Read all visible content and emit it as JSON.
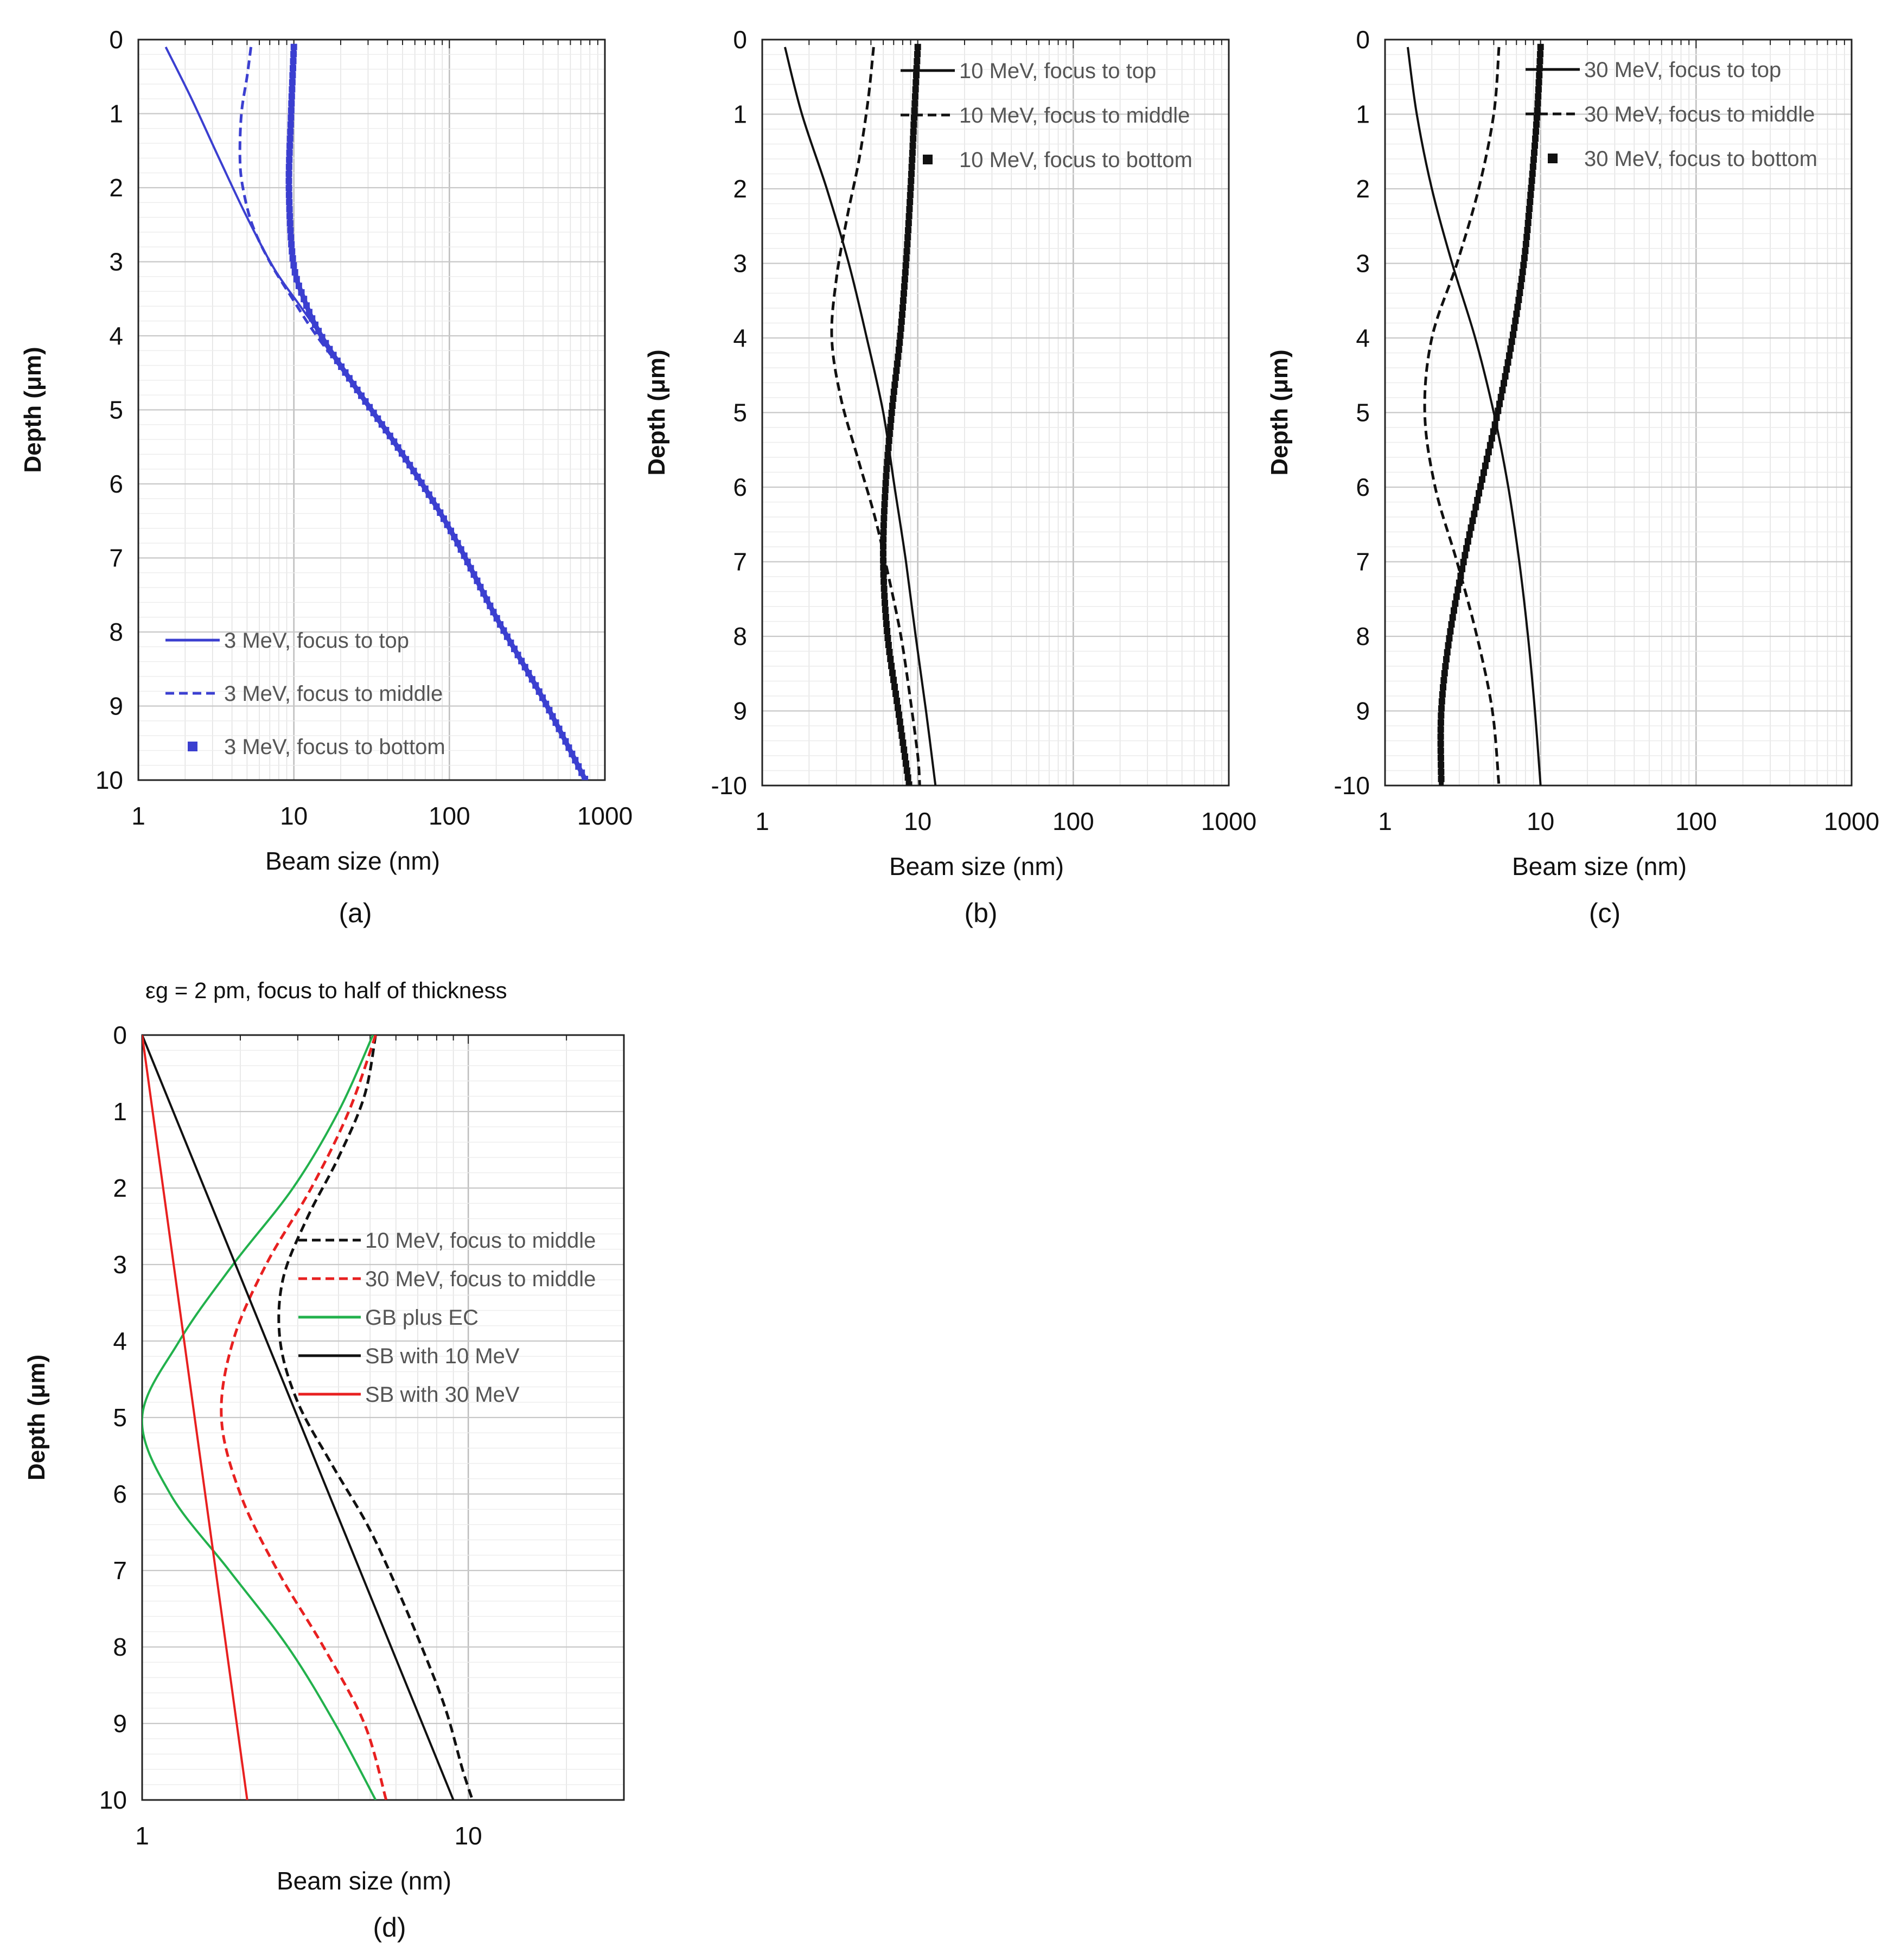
{
  "figure": {
    "panels": [
      {
        "id": "a",
        "label": "(a)"
      },
      {
        "id": "b",
        "label": "(b)"
      },
      {
        "id": "c",
        "label": "(c)"
      },
      {
        "id": "d",
        "label": "(d)"
      }
    ]
  },
  "chart_data": [
    {
      "id": "a",
      "type": "line",
      "title": "",
      "xlabel": "Beam size (nm)",
      "ylabel": "Depth  (μm)",
      "xscale": "log",
      "xlim": [
        1,
        1000
      ],
      "ylim": [
        0,
        10
      ],
      "yaxis": "inverted",
      "x_tick_labels": [
        "1",
        "10",
        "100",
        "1000"
      ],
      "y_tick_labels": [
        "0",
        "1",
        "2",
        "3",
        "4",
        "5",
        "6",
        "7",
        "8",
        "9",
        "10"
      ],
      "grid": true,
      "legend_position": "bottom-left",
      "series": [
        {
          "name": "3 MeV, focus to top",
          "style": "solid",
          "color": "#3b3fd0",
          "points": [
            [
              1.5,
              0.1
            ],
            [
              2.2,
              0.8
            ],
            [
              3.3,
              1.6
            ],
            [
              5.0,
              2.4
            ],
            [
              7.5,
              3.1
            ],
            [
              11,
              3.6
            ],
            [
              15,
              4.0
            ],
            [
              25,
              4.7
            ],
            [
              50,
              5.6
            ],
            [
              100,
              6.6
            ],
            [
              200,
              7.8
            ],
            [
              400,
              8.9
            ],
            [
              750,
              10.0
            ]
          ]
        },
        {
          "name": "3 MeV, focus to middle",
          "style": "dashed",
          "color": "#3b3fd0",
          "points": [
            [
              5.3,
              0.1
            ],
            [
              5.0,
              0.5
            ],
            [
              4.6,
              1.0
            ],
            [
              4.5,
              1.6
            ],
            [
              4.7,
              2.0
            ],
            [
              5.4,
              2.5
            ],
            [
              7.0,
              3.0
            ],
            [
              9.8,
              3.5
            ],
            [
              14,
              4.0
            ],
            [
              25,
              4.7
            ],
            [
              50,
              5.6
            ],
            [
              100,
              6.6
            ],
            [
              200,
              7.8
            ],
            [
              400,
              8.9
            ],
            [
              750,
              10.0
            ]
          ]
        },
        {
          "name": "3 MeV, focus to bottom",
          "style": "square-markers",
          "color": "#3b3fd0",
          "points": [
            [
              10.0,
              0.1
            ],
            [
              9.6,
              1.0
            ],
            [
              9.3,
              2.0
            ],
            [
              9.9,
              3.0
            ],
            [
              11.6,
              3.5
            ],
            [
              15,
              4.0
            ],
            [
              25,
              4.7
            ],
            [
              50,
              5.6
            ],
            [
              100,
              6.6
            ],
            [
              200,
              7.8
            ],
            [
              400,
              8.9
            ],
            [
              750,
              10.0
            ]
          ]
        }
      ]
    },
    {
      "id": "b",
      "type": "line",
      "title": "",
      "xlabel": "Beam size (nm)",
      "ylabel": "Depth  (μm)",
      "xscale": "log",
      "xlim": [
        1,
        1000
      ],
      "ylim": [
        0,
        10
      ],
      "yaxis": "inverted",
      "x_tick_labels": [
        "1",
        "10",
        "100",
        "1000"
      ],
      "y_tick_labels": [
        "0",
        "1",
        "2",
        "3",
        "4",
        "5",
        "6",
        "7",
        "8",
        "9",
        "-10"
      ],
      "grid": true,
      "legend_position": "top-right",
      "series": [
        {
          "name": "10 MeV, focus to top",
          "style": "solid",
          "color": "#111111",
          "points": [
            [
              1.4,
              0.1
            ],
            [
              1.8,
              1.0
            ],
            [
              2.6,
              2.0
            ],
            [
              3.6,
              3.0
            ],
            [
              4.7,
              4.0
            ],
            [
              6.0,
              5.0
            ],
            [
              7.1,
              6.0
            ],
            [
              8.4,
              7.0
            ],
            [
              9.7,
              8.0
            ],
            [
              11.3,
              9.0
            ],
            [
              13.0,
              10.0
            ]
          ]
        },
        {
          "name": "10 MeV, focus to middle",
          "style": "dashed",
          "color": "#111111",
          "points": [
            [
              5.2,
              0.1
            ],
            [
              4.8,
              0.8
            ],
            [
              4.2,
              1.6
            ],
            [
              3.5,
              2.4
            ],
            [
              3.0,
              3.2
            ],
            [
              2.8,
              4.0
            ],
            [
              3.2,
              4.8
            ],
            [
              4.1,
              5.6
            ],
            [
              5.3,
              6.4
            ],
            [
              6.5,
              7.2
            ],
            [
              7.8,
              8.0
            ],
            [
              8.9,
              8.8
            ],
            [
              10.0,
              9.6
            ],
            [
              10.3,
              10.0
            ]
          ]
        },
        {
          "name": "10 MeV, focus to bottom",
          "style": "square-markers",
          "color": "#111111",
          "points": [
            [
              10.0,
              0.1
            ],
            [
              9.5,
              1.0
            ],
            [
              9.0,
              2.0
            ],
            [
              8.4,
              3.0
            ],
            [
              7.7,
              4.0
            ],
            [
              6.8,
              5.0
            ],
            [
              6.2,
              6.0
            ],
            [
              6.0,
              7.0
            ],
            [
              6.4,
              8.0
            ],
            [
              7.5,
              9.0
            ],
            [
              8.8,
              10.0
            ]
          ]
        }
      ]
    },
    {
      "id": "c",
      "type": "line",
      "title": "",
      "xlabel": "Beam size (nm)",
      "ylabel": "Depth  (μm)",
      "xscale": "log",
      "xlim": [
        1,
        1000
      ],
      "ylim": [
        0,
        10
      ],
      "yaxis": "inverted",
      "x_tick_labels": [
        "1",
        "10",
        "100",
        "1000"
      ],
      "y_tick_labels": [
        "0",
        "1",
        "2",
        "3",
        "4",
        "5",
        "6",
        "7",
        "8",
        "9",
        "-10"
      ],
      "grid": true,
      "legend_position": "top-right",
      "series": [
        {
          "name": "30 MeV, focus to top",
          "style": "solid",
          "color": "#111111",
          "points": [
            [
              1.4,
              0.1
            ],
            [
              1.6,
              1.0
            ],
            [
              2.0,
              2.0
            ],
            [
              2.7,
              3.0
            ],
            [
              3.8,
              4.0
            ],
            [
              5.0,
              5.0
            ],
            [
              6.2,
              6.0
            ],
            [
              7.3,
              7.0
            ],
            [
              8.3,
              8.0
            ],
            [
              9.2,
              9.0
            ],
            [
              10.0,
              10.0
            ]
          ]
        },
        {
          "name": "30 MeV, focus to middle",
          "style": "dashed",
          "color": "#111111",
          "points": [
            [
              5.4,
              0.1
            ],
            [
              5.0,
              1.0
            ],
            [
              4.0,
              2.0
            ],
            [
              2.9,
              3.0
            ],
            [
              2.0,
              4.0
            ],
            [
              1.8,
              5.0
            ],
            [
              2.1,
              6.0
            ],
            [
              2.9,
              7.0
            ],
            [
              3.9,
              8.0
            ],
            [
              4.9,
              9.0
            ],
            [
              5.4,
              10.0
            ]
          ]
        },
        {
          "name": "30 MeV, focus to bottom",
          "style": "square-markers",
          "color": "#111111",
          "points": [
            [
              10.0,
              0.1
            ],
            [
              9.5,
              1.0
            ],
            [
              8.7,
              2.0
            ],
            [
              7.8,
              3.0
            ],
            [
              6.6,
              4.0
            ],
            [
              5.3,
              5.0
            ],
            [
              4.1,
              6.0
            ],
            [
              3.2,
              7.0
            ],
            [
              2.6,
              8.0
            ],
            [
              2.3,
              9.0
            ],
            [
              2.3,
              10.0
            ]
          ]
        }
      ]
    },
    {
      "id": "d",
      "type": "line",
      "title": "εg = 2 pm, focus to half of thickness",
      "xlabel": "Beam size (nm)",
      "ylabel": "Depth  (μm)",
      "xscale": "log",
      "xlim": [
        1,
        30
      ],
      "ylim": [
        0,
        10
      ],
      "yaxis": "inverted",
      "x_tick_labels": [
        "1",
        "10"
      ],
      "y_tick_labels": [
        "0",
        "1",
        "2",
        "3",
        "4",
        "5",
        "6",
        "7",
        "8",
        "9",
        "10"
      ],
      "grid": true,
      "legend_position": "middle-right",
      "series": [
        {
          "name": "10 MeV, focus to middle",
          "style": "dashed",
          "color": "#111111",
          "points": [
            [
              5.2,
              0.0
            ],
            [
              4.8,
              0.8
            ],
            [
              4.0,
              1.6
            ],
            [
              3.2,
              2.4
            ],
            [
              2.7,
              3.2
            ],
            [
              2.65,
              4.0
            ],
            [
              3.0,
              4.8
            ],
            [
              3.8,
              5.6
            ],
            [
              4.9,
              6.4
            ],
            [
              6.0,
              7.2
            ],
            [
              7.2,
              8.0
            ],
            [
              8.5,
              8.8
            ],
            [
              9.6,
              9.6
            ],
            [
              10.3,
              10.0
            ]
          ]
        },
        {
          "name": "30 MeV, focus to middle",
          "style": "dashed",
          "color": "#e82020",
          "points": [
            [
              5.2,
              0.0
            ],
            [
              4.3,
              1.0
            ],
            [
              3.3,
              2.0
            ],
            [
              2.4,
              3.0
            ],
            [
              1.9,
              4.0
            ],
            [
              1.75,
              5.0
            ],
            [
              2.0,
              6.0
            ],
            [
              2.6,
              7.0
            ],
            [
              3.6,
              8.0
            ],
            [
              4.8,
              9.0
            ],
            [
              5.6,
              10.0
            ]
          ]
        },
        {
          "name": "GB plus EC",
          "style": "solid",
          "color": "#22b14c",
          "points": [
            [
              5.1,
              0.0
            ],
            [
              4.0,
              1.0
            ],
            [
              2.9,
              2.0
            ],
            [
              1.9,
              3.0
            ],
            [
              1.3,
              4.0
            ],
            [
              1.0,
              5.0
            ],
            [
              1.22,
              6.0
            ],
            [
              1.85,
              7.0
            ],
            [
              2.8,
              8.0
            ],
            [
              3.9,
              9.0
            ],
            [
              5.2,
              10.0
            ]
          ]
        },
        {
          "name": "SB with 10 MeV",
          "style": "solid",
          "color": "#111111",
          "points": [
            [
              1.0,
              0.0
            ],
            [
              9.0,
              10.0
            ]
          ]
        },
        {
          "name": "SB with 30 MeV",
          "style": "solid",
          "color": "#e82020",
          "points": [
            [
              1.0,
              0.0
            ],
            [
              2.1,
              10.0
            ]
          ]
        }
      ]
    }
  ]
}
